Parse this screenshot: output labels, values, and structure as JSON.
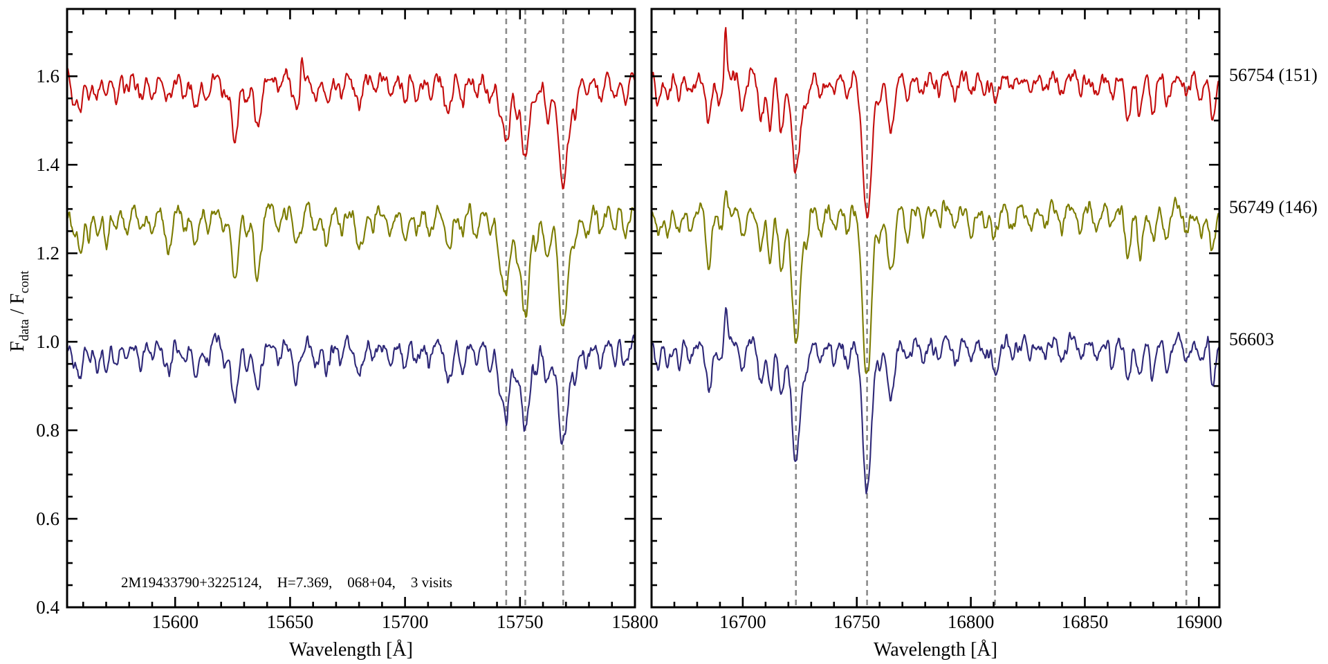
{
  "figure": {
    "background": "#ffffff",
    "annotation_parts": [
      "2M19433790+3225124,",
      "H=7.369,",
      "068+04,",
      "3 visits"
    ]
  },
  "chart_data": {
    "type": "line",
    "title": "",
    "ylabel": "F_data / F_cont",
    "ylabel_parts": [
      {
        "text": "F",
        "sub": false
      },
      {
        "text": "data",
        "sub": true
      },
      {
        "text": " / F",
        "sub": false
      },
      {
        "text": "cont",
        "sub": true
      }
    ],
    "ylim": [
      0.4,
      1.752
    ],
    "yticks": [
      0.4,
      0.6,
      0.8,
      1.0,
      1.2,
      1.4,
      1.6
    ],
    "ytick_labels": [
      "0.4",
      "0.6",
      "0.8",
      "1.0",
      "1.2",
      "1.4",
      "1.6"
    ],
    "ytick_minor_step": 0.05,
    "grid": false,
    "legend_position": "right-margin",
    "style": {
      "axis_color": "#000000",
      "feature_line_color": "#8a8a8a",
      "noise_amplitude": 0.0085
    },
    "series": [
      {
        "id": "s56754",
        "label": "56754 (151)",
        "color": "#c40d0d",
        "continuum": 1.6,
        "depth_scale": 0.95,
        "seed": 11
      },
      {
        "id": "s56749",
        "label": "56749 (146)",
        "color": "#7c7c00",
        "continuum": 1.3,
        "depth_scale": 1.1,
        "seed": 22
      },
      {
        "id": "s56603",
        "label": "56603",
        "color": "#2e2878",
        "continuum": 1.0,
        "depth_scale": 1.0,
        "seed": 33
      }
    ],
    "panels": [
      {
        "id": "left",
        "xlabel": "Wavelength [Å]",
        "xlim": [
          15553,
          15800
        ],
        "xticks": [
          15600,
          15650,
          15700,
          15750,
          15800
        ],
        "xtick_labels": [
          "15600",
          "15650",
          "15700",
          "15750",
          "15800"
        ],
        "xtick_minor_step": 10,
        "feature_lines": [
          15744,
          15752.3,
          15768.8
        ],
        "absorption_features": [
          [
            15556,
            1.3,
            0.05
          ],
          [
            15559,
            1.0,
            0.075
          ],
          [
            15562.5,
            0.9,
            0.06
          ],
          [
            15566,
            1.1,
            0.055
          ],
          [
            15570,
            1.0,
            0.07
          ],
          [
            15574,
            1.1,
            0.05
          ],
          [
            15579,
            1.2,
            0.04
          ],
          [
            15585,
            1.3,
            0.045
          ],
          [
            15590,
            1.1,
            0.05
          ],
          [
            15597,
            1.6,
            0.075
          ],
          [
            15604,
            1.1,
            0.045
          ],
          [
            15609,
            1.5,
            0.08
          ],
          [
            15614,
            1.1,
            0.04
          ],
          [
            15621,
            1.0,
            0.05
          ],
          [
            15626,
            1.5,
            0.145
          ],
          [
            15631,
            1.0,
            0.06
          ],
          [
            15636,
            1.5,
            0.13
          ],
          [
            15645,
            1.1,
            0.04
          ],
          [
            15653,
            1.6,
            0.075
          ],
          [
            15661,
            1.2,
            0.055
          ],
          [
            15666,
            1.4,
            0.07
          ],
          [
            15672,
            1.1,
            0.045
          ],
          [
            15680,
            1.7,
            0.075
          ],
          [
            15686,
            1.2,
            0.04
          ],
          [
            15694,
            1.3,
            0.045
          ],
          [
            15700,
            1.2,
            0.055
          ],
          [
            15705,
            1.1,
            0.055
          ],
          [
            15711,
            1.3,
            0.045
          ],
          [
            15719,
            1.6,
            0.085
          ],
          [
            15725,
            1.1,
            0.06
          ],
          [
            15731,
            1.2,
            0.045
          ],
          [
            15737,
            1.2,
            0.055
          ],
          [
            15741,
            1.1,
            0.07
          ],
          [
            15744,
            1.7,
            0.16
          ],
          [
            15748.5,
            1.0,
            0.07
          ],
          [
            15752.3,
            1.7,
            0.21
          ],
          [
            15757,
            1.1,
            0.06
          ],
          [
            15762,
            1.4,
            0.1
          ],
          [
            15768.8,
            2.1,
            0.25
          ],
          [
            15774,
            1.2,
            0.07
          ],
          [
            15779,
            1.3,
            0.055
          ],
          [
            15785,
            1.2,
            0.05
          ],
          [
            15791,
            1.1,
            0.05
          ],
          [
            15796,
            1.2,
            0.055
          ]
        ],
        "emission_spikes": {
          "s56754": [
            [
              15655,
              0.5,
              0.05
            ]
          ],
          "s56749": [],
          "s56603": []
        }
      },
      {
        "id": "right",
        "xlabel": "Wavelength [Å]",
        "xlim": [
          16660,
          16909
        ],
        "xticks": [
          16700,
          16750,
          16800,
          16850,
          16900
        ],
        "xtick_labels": [
          "16700",
          "16750",
          "16800",
          "16850",
          "16900"
        ],
        "xtick_minor_step": 10,
        "feature_lines": [
          16723.3,
          16754.5,
          16810.6,
          16894.5
        ],
        "absorption_features": [
          [
            16663,
            1.2,
            0.055
          ],
          [
            16667,
            1.0,
            0.05
          ],
          [
            16672,
            1.2,
            0.045
          ],
          [
            16677,
            1.0,
            0.05
          ],
          [
            16685,
            1.3,
            0.12
          ],
          [
            16690,
            1.0,
            0.05
          ],
          [
            16700,
            1.3,
            0.06
          ],
          [
            16708,
            1.1,
            0.09
          ],
          [
            16712,
            1.1,
            0.115
          ],
          [
            16717,
            1.2,
            0.125
          ],
          [
            16723.3,
            1.9,
            0.25
          ],
          [
            16728,
            1.0,
            0.06
          ],
          [
            16734,
            1.2,
            0.05
          ],
          [
            16740,
            1.2,
            0.045
          ],
          [
            16746,
            1.1,
            0.05
          ],
          [
            16754.5,
            2.0,
            0.32
          ],
          [
            16760,
            1.0,
            0.06
          ],
          [
            16765,
            1.6,
            0.13
          ],
          [
            16772,
            1.1,
            0.05
          ],
          [
            16779,
            1.2,
            0.045
          ],
          [
            16786,
            1.1,
            0.04
          ],
          [
            16793,
            1.2,
            0.04
          ],
          [
            16800,
            1.2,
            0.045
          ],
          [
            16806,
            1.1,
            0.04
          ],
          [
            16810.6,
            1.6,
            0.055
          ],
          [
            16818,
            1.1,
            0.04
          ],
          [
            16826,
            1.2,
            0.04
          ],
          [
            16833,
            1.1,
            0.035
          ],
          [
            16840,
            1.2,
            0.04
          ],
          [
            16848,
            1.1,
            0.04
          ],
          [
            16855,
            1.2,
            0.045
          ],
          [
            16862,
            1.1,
            0.05
          ],
          [
            16869,
            1.3,
            0.09
          ],
          [
            16874,
            1.1,
            0.095
          ],
          [
            16880,
            1.2,
            0.075
          ],
          [
            16886,
            1.2,
            0.065
          ],
          [
            16894.5,
            1.3,
            0.05
          ],
          [
            16901,
            1.1,
            0.055
          ],
          [
            16906,
            1.2,
            0.09
          ]
        ],
        "emission_spikes": {
          "s56754": [
            [
              16692.5,
              0.55,
              0.115
            ]
          ],
          "s56749": [
            [
              16692.5,
              0.5,
              0.035
            ]
          ],
          "s56603": [
            [
              16692.5,
              0.55,
              0.075
            ],
            [
              16904,
              0.5,
              0.04
            ]
          ]
        }
      }
    ]
  }
}
